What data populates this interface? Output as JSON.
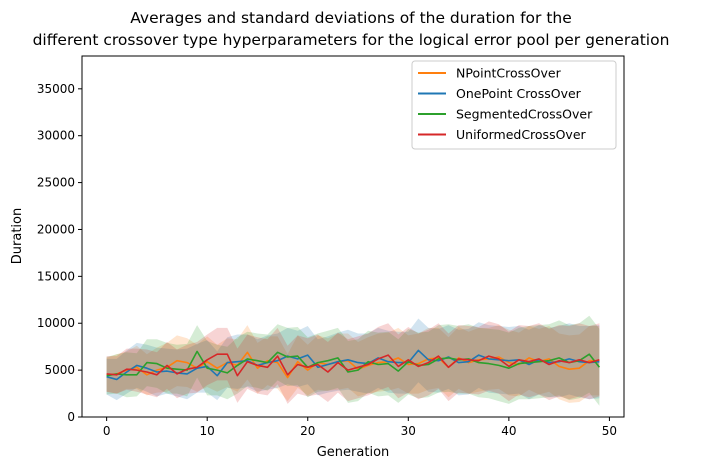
{
  "chart_data": {
    "type": "line",
    "title_line1": "Averages and standard deviations of the duration for the",
    "title_line2": "different crossover type hyperparameters for the logical error pool per generation",
    "xlabel": "Generation",
    "ylabel": "Duration",
    "xlim": [
      -2.45,
      51.45
    ],
    "ylim": [
      0,
      38500
    ],
    "xticks": [
      0,
      10,
      20,
      30,
      40,
      50
    ],
    "yticks": [
      0,
      5000,
      10000,
      15000,
      20000,
      25000,
      30000,
      35000
    ],
    "legend_position": "top-right",
    "grid": false,
    "x": [
      0,
      1,
      2,
      3,
      4,
      5,
      6,
      7,
      8,
      9,
      10,
      11,
      12,
      13,
      14,
      15,
      16,
      17,
      18,
      19,
      20,
      21,
      22,
      23,
      24,
      25,
      26,
      27,
      28,
      29,
      30,
      31,
      32,
      33,
      34,
      35,
      36,
      37,
      38,
      39,
      40,
      41,
      42,
      43,
      44,
      45,
      46,
      47,
      48,
      49
    ],
    "series": [
      {
        "name": "NPointCrossOver",
        "color": "#ff7f0e",
        "mean": [
          4500,
          4600,
          5000,
          5300,
          4500,
          5000,
          5300,
          6000,
          5800,
          5200,
          5900,
          5200,
          5800,
          5500,
          6900,
          5200,
          6000,
          5800,
          4200,
          5900,
          5000,
          5800,
          5600,
          5900,
          6000,
          5100,
          5500,
          5800,
          5900,
          6300,
          5600,
          5700,
          6200,
          6300,
          5300,
          6300,
          5800,
          6100,
          6200,
          6400,
          5800,
          5600,
          6300,
          5900,
          6200,
          5400,
          5100,
          5200,
          6000,
          6000
        ],
        "std": [
          1800,
          2100,
          2000,
          2300,
          2200,
          2400,
          2600,
          2700,
          2600,
          2500,
          2700,
          2500,
          2600,
          2800,
          2900,
          2700,
          2600,
          2800,
          2500,
          2800,
          2700,
          2900,
          2800,
          3000,
          2900,
          2900,
          3000,
          3100,
          3100,
          3200,
          3100,
          3200,
          3300,
          3200,
          3200,
          3300,
          3300,
          3400,
          3300,
          3400,
          3500,
          3400,
          3400,
          3500,
          3500,
          3500,
          3600,
          3600,
          3700,
          3700
        ]
      },
      {
        "name": "OnePoint CrossOver",
        "color": "#1f77b4",
        "mean": [
          4300,
          4000,
          4800,
          5500,
          5200,
          4800,
          4900,
          4700,
          4600,
          5200,
          5400,
          4400,
          5800,
          5900,
          6000,
          5500,
          5800,
          6000,
          6500,
          6200,
          6600,
          5300,
          5600,
          5900,
          6100,
          5800,
          5700,
          6300,
          5900,
          5800,
          5800,
          7100,
          6100,
          6000,
          6400,
          5800,
          5900,
          6600,
          6200,
          6100,
          6000,
          6100,
          5600,
          6100,
          5800,
          5900,
          6200,
          5900,
          5800,
          5900
        ],
        "std": [
          1900,
          2200,
          2300,
          2400,
          2500,
          2600,
          2400,
          2500,
          2700,
          2600,
          2800,
          2600,
          2700,
          2900,
          2800,
          2800,
          2900,
          2900,
          3000,
          3000,
          3100,
          3000,
          3000,
          3100,
          3200,
          3100,
          3200,
          3200,
          3300,
          3300,
          3300,
          3400,
          3400,
          3400,
          3400,
          3500,
          3500,
          3500,
          3600,
          3600,
          3600,
          3600,
          3700,
          3700,
          3700,
          3800,
          3800,
          3800,
          3900,
          3900
        ]
      },
      {
        "name": "SegmentedCrossOver",
        "color": "#2ca02c",
        "mean": [
          4400,
          4600,
          4500,
          4500,
          5800,
          5700,
          5200,
          5100,
          5000,
          7000,
          5200,
          5000,
          4700,
          5500,
          6200,
          6000,
          5800,
          6900,
          6400,
          6500,
          5300,
          5800,
          6000,
          6300,
          4800,
          5000,
          5900,
          5600,
          5700,
          4900,
          5900,
          5500,
          5600,
          6200,
          6300,
          6100,
          6200,
          5800,
          5700,
          5500,
          5200,
          5700,
          5800,
          5900,
          6000,
          6300,
          5800,
          6000,
          6700,
          5300
        ],
        "std": [
          2000,
          2100,
          2400,
          2300,
          2500,
          2600,
          2700,
          2600,
          2800,
          2800,
          2900,
          2700,
          2800,
          3000,
          2900,
          2900,
          3000,
          3000,
          3100,
          3100,
          3200,
          3100,
          3200,
          3200,
          3300,
          3300,
          3300,
          3400,
          3400,
          3400,
          3500,
          3500,
          3500,
          3600,
          3600,
          3600,
          3700,
          3700,
          3700,
          3800,
          3800,
          3800,
          3900,
          3900,
          3900,
          4000,
          4000,
          4000,
          4100,
          4100
        ]
      },
      {
        "name": "UniformedCrossOver",
        "color": "#d62728",
        "mean": [
          4600,
          4500,
          5100,
          5000,
          4800,
          4500,
          5500,
          4600,
          5100,
          5300,
          6100,
          6700,
          6700,
          4400,
          5900,
          5500,
          5300,
          6500,
          4500,
          5600,
          5300,
          5600,
          4800,
          5800,
          5000,
          5300,
          5600,
          6200,
          6600,
          5400,
          6100,
          5400,
          5800,
          6500,
          5300,
          6200,
          6100,
          6000,
          6500,
          6200,
          5400,
          6100,
          5900,
          6200,
          5600,
          6000,
          5800,
          6100,
          5800,
          6100
        ],
        "std": [
          1900,
          2000,
          2200,
          2300,
          2400,
          2400,
          2500,
          2600,
          2600,
          2700,
          2700,
          2800,
          2800,
          2900,
          2900,
          3000,
          3000,
          3000,
          3100,
          3100,
          3100,
          3200,
          3200,
          3200,
          3300,
          3300,
          3300,
          3400,
          3400,
          3400,
          3500,
          3500,
          3500,
          3500,
          3600,
          3600,
          3600,
          3600,
          3700,
          3700,
          3700,
          3700,
          3800,
          3800,
          3800,
          3800,
          3900,
          3900,
          3900,
          3900
        ]
      }
    ]
  }
}
